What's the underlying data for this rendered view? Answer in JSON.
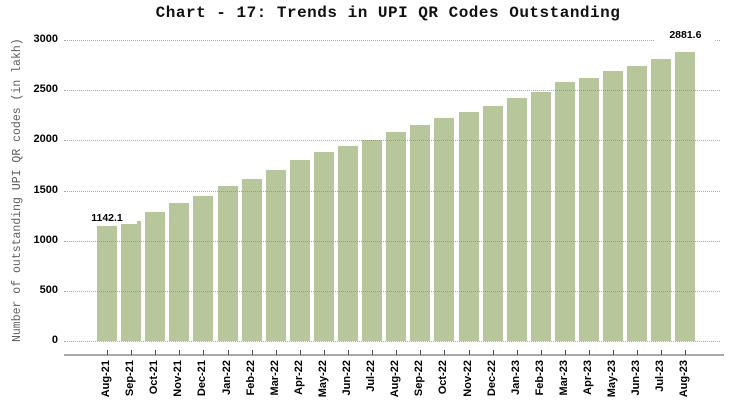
{
  "chart_data": {
    "type": "bar",
    "title": "Chart - 17: Trends in UPI QR Codes Outstanding",
    "ylabel": "Number of outstanding UPI QR codes (in lakh)",
    "xlabel": "",
    "categories": [
      "Aug-21",
      "Sep-21",
      "Oct-21",
      "Nov-21",
      "Dec-21",
      "Jan-22",
      "Feb-22",
      "Mar-22",
      "Apr-22",
      "May-22",
      "Jun-22",
      "Jul-22",
      "Aug-22",
      "Sep-22",
      "Oct-22",
      "Nov-22",
      "Dec-22",
      "Jan-23",
      "Feb-23",
      "Mar-23",
      "Apr-23",
      "May-23",
      "Jun-23",
      "Jul-23",
      "Aug-23"
    ],
    "values": [
      1142.1,
      1200,
      1283,
      1380,
      1447,
      1540,
      1610,
      1706,
      1805,
      1885,
      1948,
      2008,
      2080,
      2150,
      2220,
      2280,
      2345,
      2420,
      2480,
      2580,
      2625,
      2690,
      2740,
      2815,
      2881.6
    ],
    "ylim": [
      0,
      3000
    ],
    "yticks": [
      0,
      500,
      1000,
      1500,
      2000,
      2500,
      3000
    ],
    "grid": "horizontal-dotted",
    "legend": "none",
    "annotations": [
      {
        "category": "Aug-21",
        "text": "1142.1",
        "gap": 2
      },
      {
        "category": "Aug-23",
        "text": "2881.6",
        "gap": 11
      }
    ],
    "colors": {
      "bar": "#b8c79b",
      "axis_line": "#a9a9a9",
      "grid": "#8c8c8c",
      "ylabel_text": "#606060",
      "tick_text": "#000000"
    }
  }
}
